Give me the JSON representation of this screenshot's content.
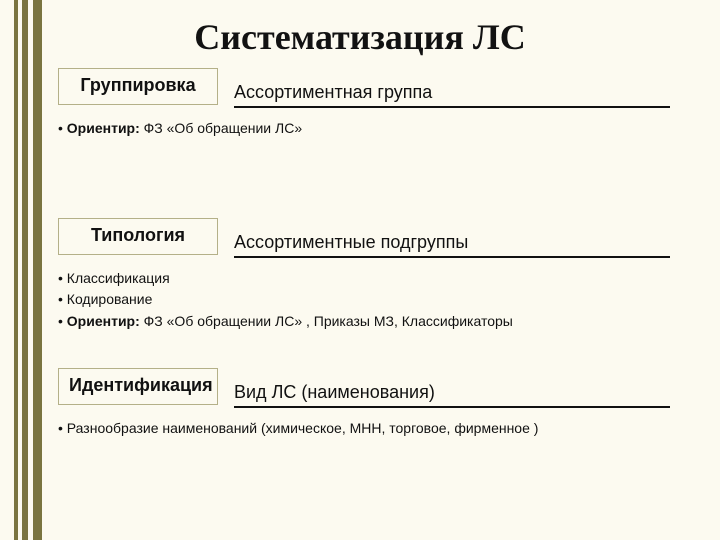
{
  "title": "Систематизация ЛС",
  "sections": [
    {
      "label": "Группировка",
      "right": "Ассортиментная группа",
      "bullets": [
        {
          "prefix": "• ",
          "bold": "Ориентир:",
          "rest": " ФЗ «Об обращении ЛС»"
        }
      ]
    },
    {
      "label": "Типология",
      "right": "Ассортиментные подгруппы",
      "bullets": [
        {
          "prefix": "• ",
          "bold": "",
          "rest": "Классификация"
        },
        {
          "prefix": "• ",
          "bold": "",
          "rest": "Кодирование"
        },
        {
          "prefix": "• ",
          "bold": "Ориентир:",
          "rest": " ФЗ «Об обращении ЛС» , Приказы МЗ, Классификаторы"
        }
      ]
    },
    {
      "label": "Идентификация",
      "right": "Вид ЛС (наименования)",
      "bullets": [
        {
          "prefix": "• ",
          "bold": "",
          "rest": "Разнообразие наименований (химическое, МНН, торговое, фирменное )"
        }
      ]
    }
  ],
  "style": {
    "bg": "#fcfaf0",
    "bar_color": "#7a7440",
    "border_color": "#b4b088",
    "title_color": "#121212",
    "text_color": "#111",
    "underline_color": "#111"
  }
}
